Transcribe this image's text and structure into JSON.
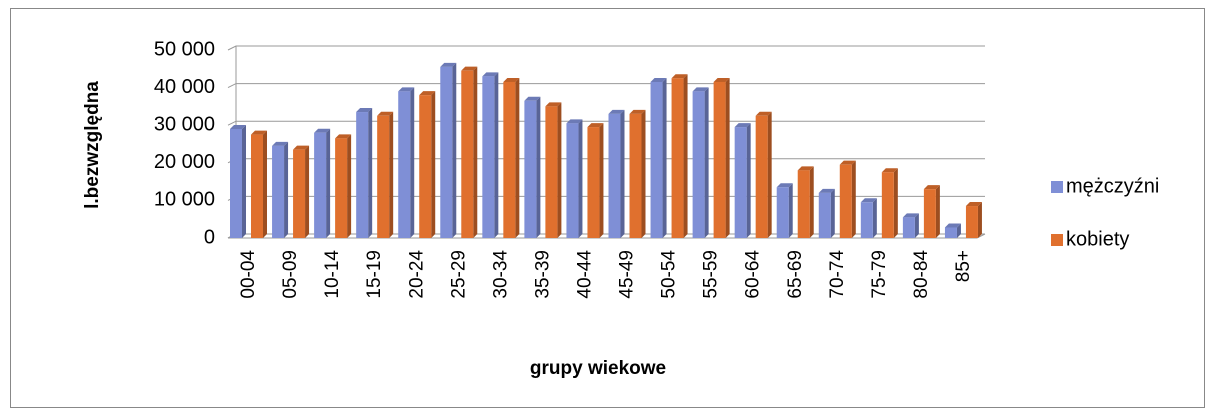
{
  "chart_data": {
    "type": "bar",
    "categories": [
      "00-04",
      "05-09",
      "10-14",
      "15-19",
      "20-24",
      "25-29",
      "30-34",
      "35-39",
      "40-44",
      "45-49",
      "50-54",
      "55-59",
      "60-64",
      "65-69",
      "70-74",
      "75-79",
      "80-84",
      "85+"
    ],
    "series": [
      {
        "name": "mężczyźni",
        "color": "#7f8fd6",
        "values": [
          29000,
          24500,
          28000,
          33500,
          39000,
          45500,
          43000,
          36500,
          30500,
          33000,
          41500,
          39000,
          29500,
          13500,
          12000,
          9500,
          5500,
          2800
        ]
      },
      {
        "name": "kobiety",
        "color": "#e0702e",
        "values": [
          27500,
          23500,
          26500,
          32500,
          38000,
          44500,
          41500,
          35000,
          29500,
          33000,
          42500,
          41500,
          32500,
          18000,
          19500,
          17500,
          13000,
          8500
        ]
      }
    ],
    "ylim": [
      0,
      50000
    ],
    "yticks": [
      0,
      {
        "value": 10000,
        "label": "10 000"
      },
      {
        "value": 20000,
        "label": "20 000"
      },
      {
        "value": 30000,
        "label": "30 000"
      },
      {
        "value": 40000,
        "label": "40 000"
      },
      {
        "value": 50000,
        "label": "50 000"
      }
    ],
    "xlabel": "grupy wiekowe",
    "ylabel": "l.bezwzględna",
    "grid": true,
    "legend": "right"
  }
}
